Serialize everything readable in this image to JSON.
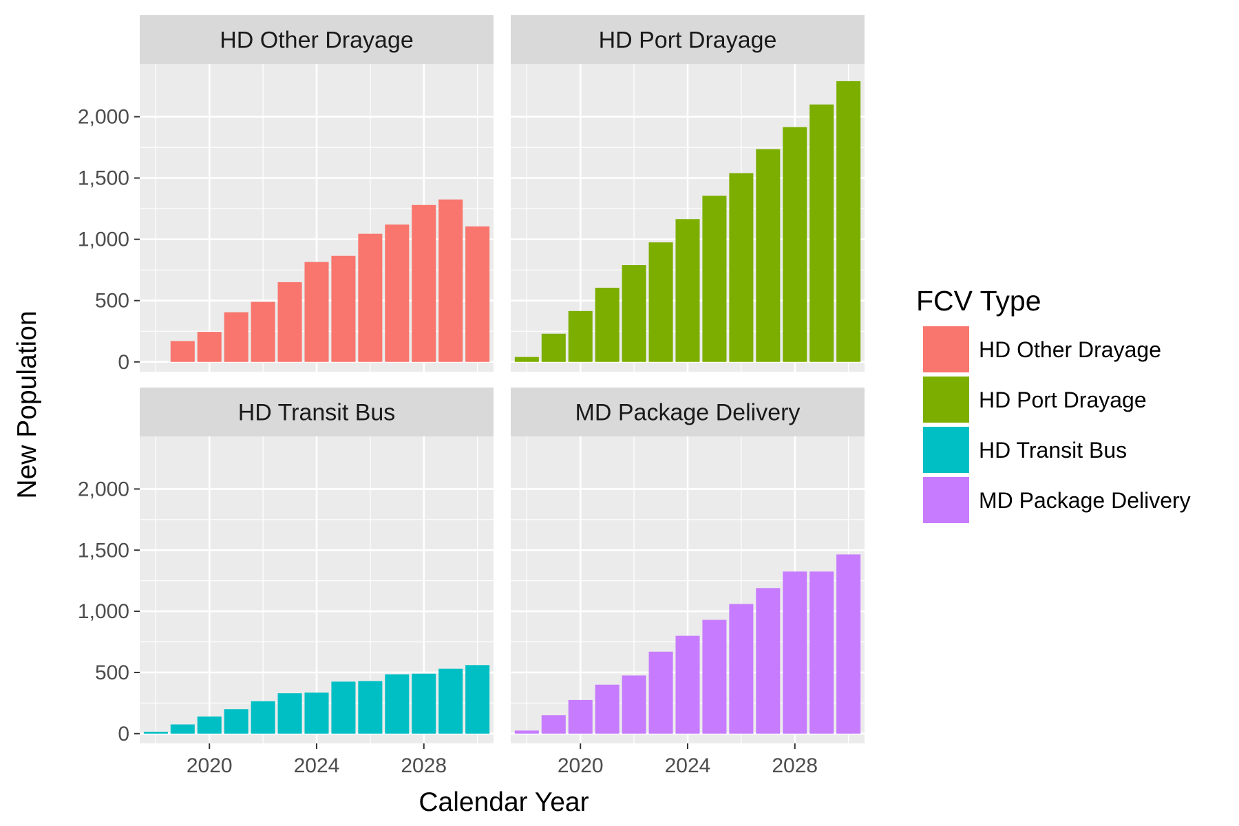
{
  "chart_data": {
    "type": "bar",
    "x": [
      2018,
      2019,
      2020,
      2021,
      2022,
      2023,
      2024,
      2025,
      2026,
      2027,
      2028,
      2029,
      2030
    ],
    "xlabel": "Calendar Year",
    "ylabel": "New Population",
    "xticks": [
      "2020",
      "2024",
      "2028"
    ],
    "yticks": [
      "0",
      "500",
      "1,000",
      "1,500",
      "2,000"
    ],
    "ylim": [
      -80,
      2430
    ],
    "xlim": [
      2017.4,
      2030.6
    ],
    "grid": true,
    "legend": {
      "title": "FCV Type",
      "placement": "right",
      "entries": [
        "HD Other Drayage",
        "HD Port Drayage",
        "HD Transit Bus",
        "MD Package Delivery"
      ]
    },
    "series": [
      {
        "name": "HD Other Drayage",
        "color": "#F8766D",
        "values": [
          0,
          170,
          245,
          405,
          490,
          650,
          815,
          865,
          1045,
          1120,
          1280,
          1325,
          1105
        ]
      },
      {
        "name": "HD Port Drayage",
        "color": "#7CAE00",
        "values": [
          40,
          230,
          415,
          605,
          790,
          975,
          1165,
          1355,
          1540,
          1735,
          1915,
          2100,
          2290
        ]
      },
      {
        "name": "HD Transit Bus",
        "color": "#00BFC4",
        "values": [
          15,
          75,
          140,
          200,
          265,
          330,
          335,
          425,
          430,
          485,
          490,
          530,
          560
        ]
      },
      {
        "name": "MD Package Delivery",
        "color": "#C77CFF",
        "values": [
          25,
          150,
          275,
          400,
          475,
          670,
          800,
          930,
          1060,
          1190,
          1325,
          1325,
          1465
        ]
      }
    ]
  }
}
